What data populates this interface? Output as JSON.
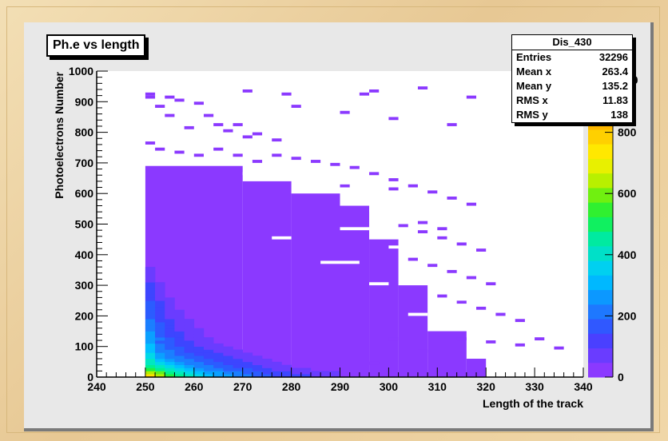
{
  "chart_data": {
    "type": "heatmap",
    "title": "Ph.e vs length",
    "xlabel": "Length of the track",
    "ylabel": "Photoelectrons Number",
    "xlim": [
      240,
      340
    ],
    "ylim": [
      0,
      1000
    ],
    "x_ticks": [
      240,
      250,
      260,
      270,
      280,
      290,
      300,
      310,
      320,
      330,
      340
    ],
    "y_ticks": [
      0,
      100,
      200,
      300,
      400,
      500,
      600,
      700,
      800,
      900,
      1000
    ],
    "colorbar_ticks": [
      "0",
      "200",
      "400",
      "600",
      "800"
    ],
    "colorbar_partial_label": "00",
    "stats": {
      "name": "Dis_430",
      "rows": [
        {
          "label": "Entries",
          "value": "32296"
        },
        {
          "label": "Mean x",
          "value": "263.4"
        },
        {
          "label": "Mean y",
          "value": "135.2"
        },
        {
          "label": "RMS x",
          "value": "11.83"
        },
        {
          "label": "RMS y",
          "value": "138"
        }
      ]
    },
    "bins": {
      "x_bin_width": 2,
      "y_bin_width": 10
    },
    "palette": [
      "#8b39ff",
      "#6a3cff",
      "#3d45ff",
      "#2b5cff",
      "#1a7fff",
      "#0aa0ff",
      "#00c0ff",
      "#00d8e8",
      "#00e8c0",
      "#00f090",
      "#20f040",
      "#60f020",
      "#b0f000",
      "#e8f000",
      "#ffe000",
      "#ffc000"
    ],
    "cells": [
      [
        250,
        0,
        14
      ],
      [
        250,
        10,
        12
      ],
      [
        250,
        20,
        10
      ],
      [
        250,
        30,
        9
      ],
      [
        250,
        40,
        8
      ],
      [
        250,
        50,
        8
      ],
      [
        250,
        60,
        7
      ],
      [
        250,
        70,
        7
      ],
      [
        250,
        80,
        6
      ],
      [
        250,
        90,
        6
      ],
      [
        250,
        100,
        6
      ],
      [
        250,
        110,
        5
      ],
      [
        250,
        120,
        5
      ],
      [
        250,
        130,
        5
      ],
      [
        250,
        140,
        5
      ],
      [
        250,
        150,
        4
      ],
      [
        250,
        160,
        4
      ],
      [
        250,
        170,
        4
      ],
      [
        250,
        180,
        4
      ],
      [
        250,
        190,
        3
      ],
      [
        250,
        200,
        3
      ],
      [
        250,
        210,
        3
      ],
      [
        250,
        220,
        3
      ],
      [
        250,
        230,
        3
      ],
      [
        250,
        240,
        3
      ],
      [
        250,
        250,
        2
      ],
      [
        250,
        260,
        2
      ],
      [
        250,
        270,
        2
      ],
      [
        250,
        280,
        2
      ],
      [
        250,
        290,
        2
      ],
      [
        250,
        300,
        2
      ],
      [
        250,
        310,
        1
      ],
      [
        250,
        320,
        1
      ],
      [
        250,
        330,
        1
      ],
      [
        250,
        340,
        1
      ],
      [
        250,
        350,
        1
      ],
      [
        252,
        0,
        12
      ],
      [
        252,
        10,
        11
      ],
      [
        252,
        20,
        9
      ],
      [
        252,
        30,
        8
      ],
      [
        252,
        40,
        7
      ],
      [
        252,
        50,
        6
      ],
      [
        252,
        60,
        5
      ],
      [
        252,
        70,
        5
      ],
      [
        252,
        80,
        4
      ],
      [
        252,
        90,
        4
      ],
      [
        252,
        100,
        4
      ],
      [
        252,
        110,
        3
      ],
      [
        252,
        120,
        4
      ],
      [
        252,
        130,
        3
      ],
      [
        252,
        140,
        3
      ],
      [
        252,
        150,
        3
      ],
      [
        252,
        160,
        3
      ],
      [
        252,
        170,
        3
      ],
      [
        252,
        180,
        2
      ],
      [
        252,
        190,
        2
      ],
      [
        252,
        200,
        2
      ],
      [
        252,
        210,
        2
      ],
      [
        252,
        220,
        2
      ],
      [
        252,
        230,
        2
      ],
      [
        252,
        240,
        2
      ],
      [
        252,
        250,
        1
      ],
      [
        252,
        260,
        1
      ],
      [
        252,
        270,
        1
      ],
      [
        252,
        280,
        1
      ],
      [
        252,
        290,
        1
      ],
      [
        252,
        300,
        1
      ],
      [
        254,
        0,
        10
      ],
      [
        254,
        10,
        9
      ],
      [
        254,
        20,
        8
      ],
      [
        254,
        30,
        7
      ],
      [
        254,
        40,
        6
      ],
      [
        254,
        50,
        5
      ],
      [
        254,
        60,
        4
      ],
      [
        254,
        70,
        4
      ],
      [
        254,
        80,
        4
      ],
      [
        254,
        90,
        3
      ],
      [
        254,
        100,
        3
      ],
      [
        254,
        110,
        3
      ],
      [
        254,
        120,
        3
      ],
      [
        254,
        130,
        2
      ],
      [
        254,
        140,
        2
      ],
      [
        254,
        150,
        2
      ],
      [
        254,
        160,
        2
      ],
      [
        254,
        170,
        2
      ],
      [
        254,
        180,
        2
      ],
      [
        254,
        190,
        1
      ],
      [
        254,
        200,
        1
      ],
      [
        254,
        210,
        1
      ],
      [
        254,
        220,
        1
      ],
      [
        254,
        230,
        1
      ],
      [
        254,
        240,
        1
      ],
      [
        254,
        250,
        1
      ],
      [
        256,
        0,
        9
      ],
      [
        256,
        10,
        8
      ],
      [
        256,
        20,
        7
      ],
      [
        256,
        30,
        6
      ],
      [
        256,
        40,
        5
      ],
      [
        256,
        50,
        4
      ],
      [
        256,
        60,
        4
      ],
      [
        256,
        70,
        3
      ],
      [
        256,
        80,
        3
      ],
      [
        256,
        90,
        3
      ],
      [
        256,
        100,
        2
      ],
      [
        256,
        110,
        2
      ],
      [
        256,
        120,
        2
      ],
      [
        256,
        130,
        2
      ],
      [
        256,
        140,
        2
      ],
      [
        256,
        150,
        1
      ],
      [
        256,
        160,
        1
      ],
      [
        256,
        170,
        1
      ],
      [
        256,
        180,
        1
      ],
      [
        256,
        190,
        1
      ],
      [
        256,
        200,
        1
      ],
      [
        256,
        210,
        1
      ],
      [
        258,
        0,
        8
      ],
      [
        258,
        10,
        7
      ],
      [
        258,
        20,
        6
      ],
      [
        258,
        30,
        5
      ],
      [
        258,
        40,
        4
      ],
      [
        258,
        50,
        4
      ],
      [
        258,
        60,
        3
      ],
      [
        258,
        70,
        3
      ],
      [
        258,
        80,
        2
      ],
      [
        258,
        90,
        2
      ],
      [
        258,
        100,
        2
      ],
      [
        258,
        110,
        2
      ],
      [
        258,
        120,
        1
      ],
      [
        258,
        130,
        1
      ],
      [
        258,
        140,
        1
      ],
      [
        258,
        150,
        1
      ],
      [
        258,
        160,
        1
      ],
      [
        258,
        170,
        1
      ],
      [
        258,
        180,
        1
      ],
      [
        260,
        0,
        7
      ],
      [
        260,
        10,
        6
      ],
      [
        260,
        20,
        5
      ],
      [
        260,
        30,
        4
      ],
      [
        260,
        40,
        4
      ],
      [
        260,
        50,
        3
      ],
      [
        260,
        60,
        3
      ],
      [
        260,
        70,
        2
      ],
      [
        260,
        80,
        2
      ],
      [
        260,
        90,
        2
      ],
      [
        260,
        100,
        1
      ],
      [
        260,
        110,
        1
      ],
      [
        260,
        120,
        1
      ],
      [
        260,
        130,
        1
      ],
      [
        260,
        140,
        1
      ],
      [
        260,
        150,
        1
      ],
      [
        262,
        0,
        6
      ],
      [
        262,
        10,
        5
      ],
      [
        262,
        20,
        4
      ],
      [
        262,
        30,
        4
      ],
      [
        262,
        40,
        3
      ],
      [
        262,
        50,
        3
      ],
      [
        262,
        60,
        2
      ],
      [
        262,
        70,
        2
      ],
      [
        262,
        80,
        2
      ],
      [
        262,
        90,
        1
      ],
      [
        262,
        100,
        1
      ],
      [
        262,
        110,
        1
      ],
      [
        262,
        120,
        1
      ],
      [
        264,
        0,
        5
      ],
      [
        264,
        10,
        5
      ],
      [
        264,
        20,
        4
      ],
      [
        264,
        30,
        3
      ],
      [
        264,
        40,
        3
      ],
      [
        264,
        50,
        2
      ],
      [
        264,
        60,
        2
      ],
      [
        264,
        70,
        2
      ],
      [
        264,
        80,
        1
      ],
      [
        264,
        90,
        1
      ],
      [
        264,
        100,
        1
      ],
      [
        266,
        0,
        5
      ],
      [
        266,
        10,
        4
      ],
      [
        266,
        20,
        3
      ],
      [
        266,
        30,
        3
      ],
      [
        266,
        40,
        2
      ],
      [
        266,
        50,
        2
      ],
      [
        266,
        60,
        2
      ],
      [
        266,
        70,
        1
      ],
      [
        266,
        80,
        1
      ],
      [
        266,
        90,
        1
      ],
      [
        268,
        0,
        4
      ],
      [
        268,
        10,
        4
      ],
      [
        268,
        20,
        3
      ],
      [
        268,
        30,
        2
      ],
      [
        268,
        40,
        2
      ],
      [
        268,
        50,
        2
      ],
      [
        268,
        60,
        1
      ],
      [
        268,
        70,
        1
      ],
      [
        268,
        80,
        1
      ],
      [
        270,
        0,
        4
      ],
      [
        270,
        10,
        3
      ],
      [
        270,
        20,
        3
      ],
      [
        270,
        30,
        2
      ],
      [
        270,
        40,
        2
      ],
      [
        270,
        50,
        1
      ],
      [
        270,
        60,
        1
      ],
      [
        270,
        70,
        1
      ],
      [
        272,
        0,
        3
      ],
      [
        272,
        10,
        3
      ],
      [
        272,
        20,
        2
      ],
      [
        272,
        30,
        2
      ],
      [
        272,
        40,
        1
      ],
      [
        272,
        50,
        1
      ],
      [
        272,
        60,
        1
      ],
      [
        274,
        0,
        3
      ],
      [
        274,
        10,
        2
      ],
      [
        274,
        20,
        2
      ],
      [
        274,
        30,
        1
      ],
      [
        274,
        40,
        1
      ],
      [
        274,
        50,
        1
      ],
      [
        276,
        0,
        2
      ],
      [
        276,
        10,
        2
      ],
      [
        276,
        20,
        1
      ],
      [
        276,
        30,
        1
      ],
      [
        276,
        40,
        1
      ],
      [
        278,
        0,
        2
      ],
      [
        278,
        10,
        2
      ],
      [
        278,
        20,
        1
      ],
      [
        278,
        30,
        1
      ],
      [
        280,
        0,
        2
      ],
      [
        280,
        10,
        1
      ],
      [
        280,
        20,
        1
      ],
      [
        282,
        0,
        2
      ],
      [
        282,
        10,
        1
      ],
      [
        282,
        20,
        1
      ],
      [
        284,
        0,
        1
      ],
      [
        284,
        10,
        1
      ],
      [
        286,
        0,
        1
      ],
      [
        286,
        10,
        1
      ],
      [
        288,
        0,
        1
      ],
      [
        288,
        10,
        1
      ]
    ]
  }
}
